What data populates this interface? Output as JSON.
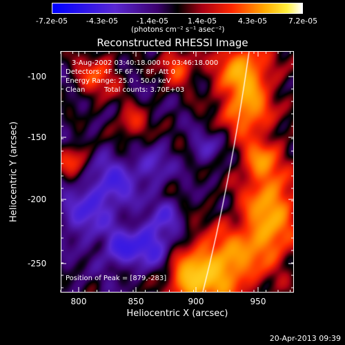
{
  "colorbar": {
    "ticks": [
      "-7.2e-05",
      "-4.3e-05",
      "-1.4e-05",
      "1.4e-05",
      "4.3e-05",
      "7.2e-05"
    ],
    "units": "(photons cm⁻² s⁻¹ asec⁻²)",
    "min": -7.2e-05,
    "max": 7.2e-05,
    "colormap": "blue-purple-red-yellow-white"
  },
  "title": "Reconstructed RHESSI Image",
  "annotations": {
    "time_range": "3-Aug-2002 03:40:18.000 to 03:46:18.000",
    "detectors": "Detectors: 4F 5F 6F 7F 8F, Att 0",
    "energy": "Energy Range: 25.0 - 50.0 keV",
    "clean": "Clean",
    "total_counts": "Total counts: 3.70E+03",
    "peak": "Position of Peak = [879,-283]"
  },
  "axes": {
    "xlabel": "Heliocentric X (arcsec)",
    "ylabel": "Heliocentric Y (arcsec)",
    "x_ticks": [
      "800",
      "850",
      "900",
      "950"
    ],
    "y_ticks": [
      "-100",
      "-150",
      "-200",
      "-250"
    ],
    "x_range": [
      785,
      978
    ],
    "y_range": [
      -277,
      -78
    ]
  },
  "timestamp": "20-Apr-2013 09:39",
  "limb_color": "#ffffff"
}
